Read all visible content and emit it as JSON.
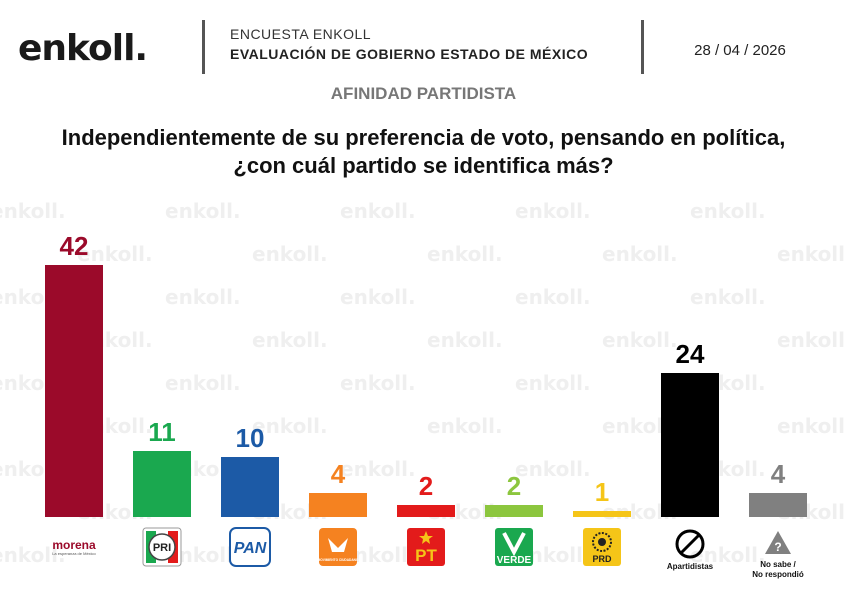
{
  "header": {
    "logo": "enkoll.",
    "survey": "ENCUESTA ENKOLL",
    "subtitle": "EVALUACIÓN DE GOBIERNO ESTADO DE MÉXICO",
    "date": "28 / 04 / 2026"
  },
  "chart_data": {
    "type": "bar",
    "title": "AFINIDAD PARTIDISTA",
    "subtitle": "Independientemente de su preferencia de voto, pensando en política, ¿con cuál partido se identifica más?",
    "categories": [
      "morena",
      "PRI",
      "PAN",
      "MC",
      "PT",
      "VERDE",
      "PRD",
      "Apartidistas",
      "No sabe / No respondió"
    ],
    "values": [
      42,
      11,
      10,
      4,
      2,
      2,
      1,
      24,
      4
    ],
    "colors": [
      "#9b0a2a",
      "#1aa84f",
      "#1c5aa6",
      "#f58220",
      "#e31b1b",
      "#8cc63e",
      "#f5c518",
      "#000000",
      "#808080"
    ],
    "label_colors": [
      "#9b0a2a",
      "#1aa84f",
      "#1c5aa6",
      "#f58220",
      "#e31b1b",
      "#8cc63e",
      "#f5c518",
      "#000000",
      "#808080"
    ],
    "logo_texts": {
      "morena_sub": "La esperanza de México",
      "pri": "PRI",
      "pan": "PAN",
      "mc_sub": "MOVIMIENTO CIUDADANO",
      "pt": "PT",
      "verde": "VERDE",
      "prd": "PRD",
      "apartidistas": "Apartidistas",
      "nosabe_1": "No sabe /",
      "nosabe_2": "No respondió"
    },
    "ylim": [
      0,
      42
    ],
    "grid": false,
    "legend": "none"
  }
}
